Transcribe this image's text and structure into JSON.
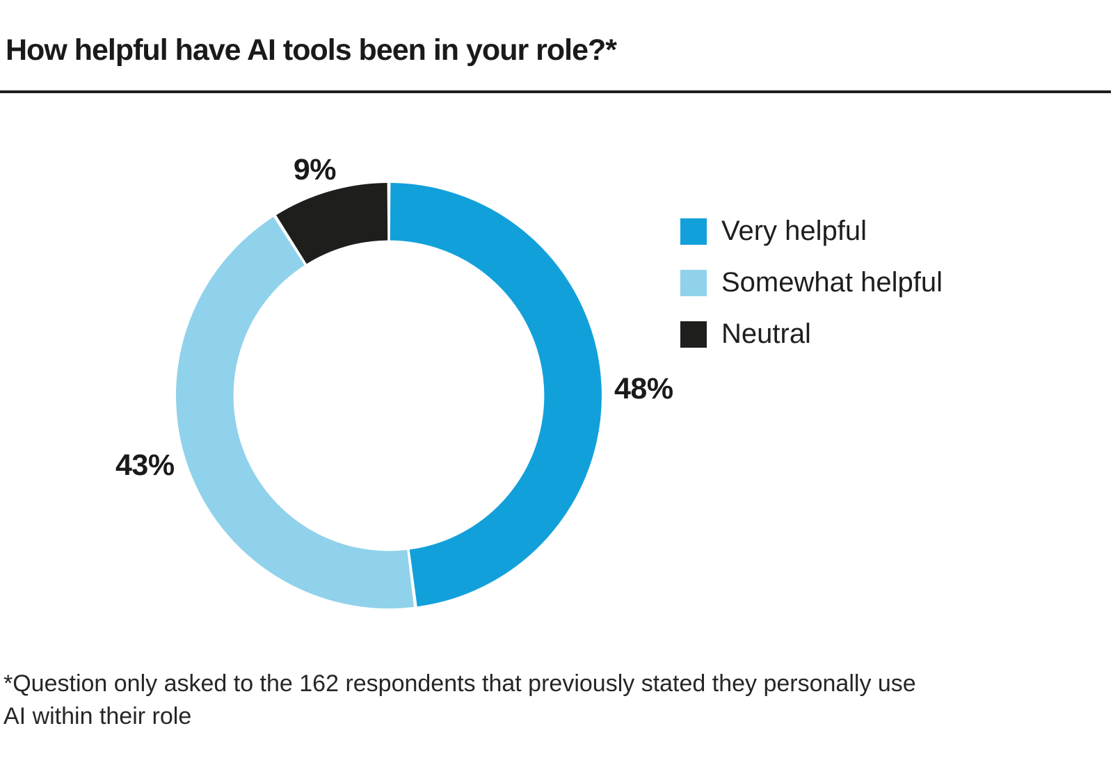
{
  "chart_data": {
    "type": "pie",
    "subtype": "donut",
    "title": "How helpful have AI tools been in your role?*",
    "categories": [
      "Very helpful",
      "Somewhat helpful",
      "Neutral"
    ],
    "values": [
      48,
      43,
      9
    ],
    "unit": "%",
    "start_angle_deg": 0,
    "direction": "clockwise",
    "inner_radius_ratio": 0.73,
    "separator_color": "#FFFFFF",
    "legend_position": "right",
    "segments": [
      {
        "label": "Very helpful",
        "value": 48,
        "display": "48%",
        "color": "#12A0DB"
      },
      {
        "label": "Somewhat helpful",
        "value": 43,
        "display": "43%",
        "color": "#90D2EB"
      },
      {
        "label": "Neutral",
        "value": 9,
        "display": "9%",
        "color": "#1E1E1C"
      }
    ],
    "footnote": "*Question only asked to the 162 respondents that previously stated they personally use AI within their role"
  },
  "style": {
    "divider_color": "#1E1E1E",
    "text_color": "#1A1A1A",
    "background": "#FFFFFF"
  }
}
